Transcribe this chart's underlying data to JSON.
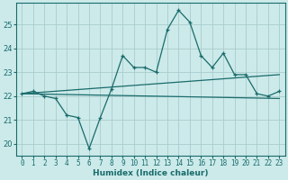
{
  "xlabel": "Humidex (Indice chaleur)",
  "bg_color": "#cceaea",
  "grid_color": "#aacccc",
  "line_color": "#1a6b6b",
  "x_values": [
    0,
    1,
    2,
    3,
    4,
    5,
    6,
    7,
    8,
    9,
    10,
    11,
    12,
    13,
    14,
    15,
    16,
    17,
    18,
    19,
    20,
    21,
    22,
    23
  ],
  "y_main": [
    22.1,
    22.2,
    22.0,
    21.9,
    21.2,
    21.1,
    19.8,
    21.1,
    22.3,
    23.7,
    23.2,
    23.2,
    23.0,
    24.8,
    25.6,
    25.1,
    23.7,
    23.2,
    23.8,
    22.9,
    22.9,
    22.1,
    22.0,
    22.2
  ],
  "y_upper_start": 22.1,
  "y_upper_end": 22.9,
  "y_lower_start": 22.1,
  "y_lower_end": 21.9,
  "ylim": [
    19.5,
    25.9
  ],
  "yticks": [
    20,
    21,
    22,
    23,
    24,
    25
  ],
  "xlim": [
    -0.5,
    23.5
  ],
  "xticks": [
    0,
    1,
    2,
    3,
    4,
    5,
    6,
    7,
    8,
    9,
    10,
    11,
    12,
    13,
    14,
    15,
    16,
    17,
    18,
    19,
    20,
    21,
    22,
    23
  ],
  "xtick_labels": [
    "0",
    "1",
    "2",
    "3",
    "4",
    "5",
    "6",
    "7",
    "8",
    "9",
    "10",
    "11",
    "12",
    "13",
    "14",
    "15",
    "16",
    "17",
    "18",
    "19",
    "20",
    "21",
    "22",
    "23"
  ]
}
